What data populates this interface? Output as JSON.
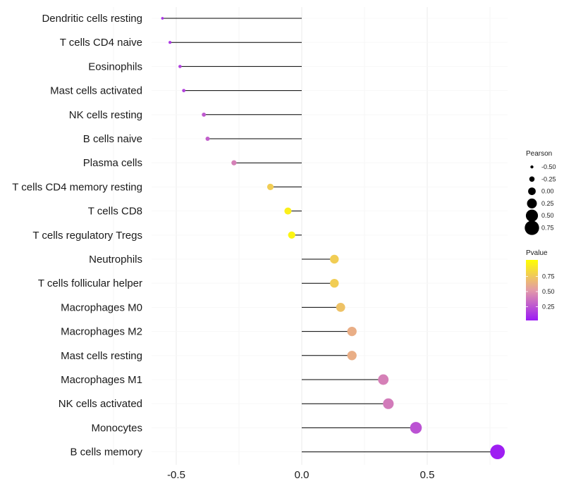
{
  "chart_data": {
    "type": "lollipop",
    "title": "",
    "xlabel": "",
    "ylabel": "",
    "xlim": [
      -0.85,
      0.8
    ],
    "x_ticks": [
      {
        "value": -0.5,
        "label": "-0.5"
      },
      {
        "value": 0.0,
        "label": "0.0"
      },
      {
        "value": 0.5,
        "label": "0.5"
      }
    ],
    "grid": true,
    "categories": [
      "Dendritic cells resting",
      "T cells CD4 naive",
      "Eosinophils",
      "Mast cells activated",
      "NK cells resting",
      "B cells naive",
      "Plasma cells",
      "T cells CD4 memory resting",
      "T cells CD8",
      "T cells regulatory  Tregs",
      "Neutrophils",
      "T cells follicular helper",
      "Macrophages M0",
      "Macrophages M2",
      "Mast cells resting",
      "Macrophages M1",
      "NK cells activated",
      "Monocytes",
      "B cells memory"
    ],
    "values": [
      -0.555,
      -0.525,
      -0.485,
      -0.47,
      -0.39,
      -0.375,
      -0.27,
      -0.125,
      -0.055,
      -0.04,
      0.13,
      0.13,
      0.155,
      0.2,
      0.2,
      0.325,
      0.345,
      0.455,
      0.78
    ],
    "pvalues": [
      0.1,
      0.12,
      0.15,
      0.16,
      0.25,
      0.27,
      0.4,
      0.75,
      0.92,
      0.95,
      0.75,
      0.75,
      0.7,
      0.6,
      0.6,
      0.4,
      0.38,
      0.22,
      0.02
    ],
    "size_legend": {
      "title": "Pearson",
      "entries": [
        {
          "value": -0.5,
          "label": "-0.50"
        },
        {
          "value": -0.25,
          "label": "-0.25"
        },
        {
          "value": 0.0,
          "label": "0.00"
        },
        {
          "value": 0.25,
          "label": "0.25"
        },
        {
          "value": 0.5,
          "label": "0.50"
        },
        {
          "value": 0.75,
          "label": "0.75"
        }
      ]
    },
    "color_legend": {
      "title": "Pvalue",
      "range": [
        0.0,
        1.0
      ],
      "low_color": "#9b19f5",
      "high_color": "#ffff00",
      "ticks": [
        {
          "value": 0.25,
          "label": "0.25"
        },
        {
          "value": 0.5,
          "label": "0.50"
        },
        {
          "value": 0.75,
          "label": "0.75"
        }
      ]
    },
    "legend_position": "right"
  }
}
